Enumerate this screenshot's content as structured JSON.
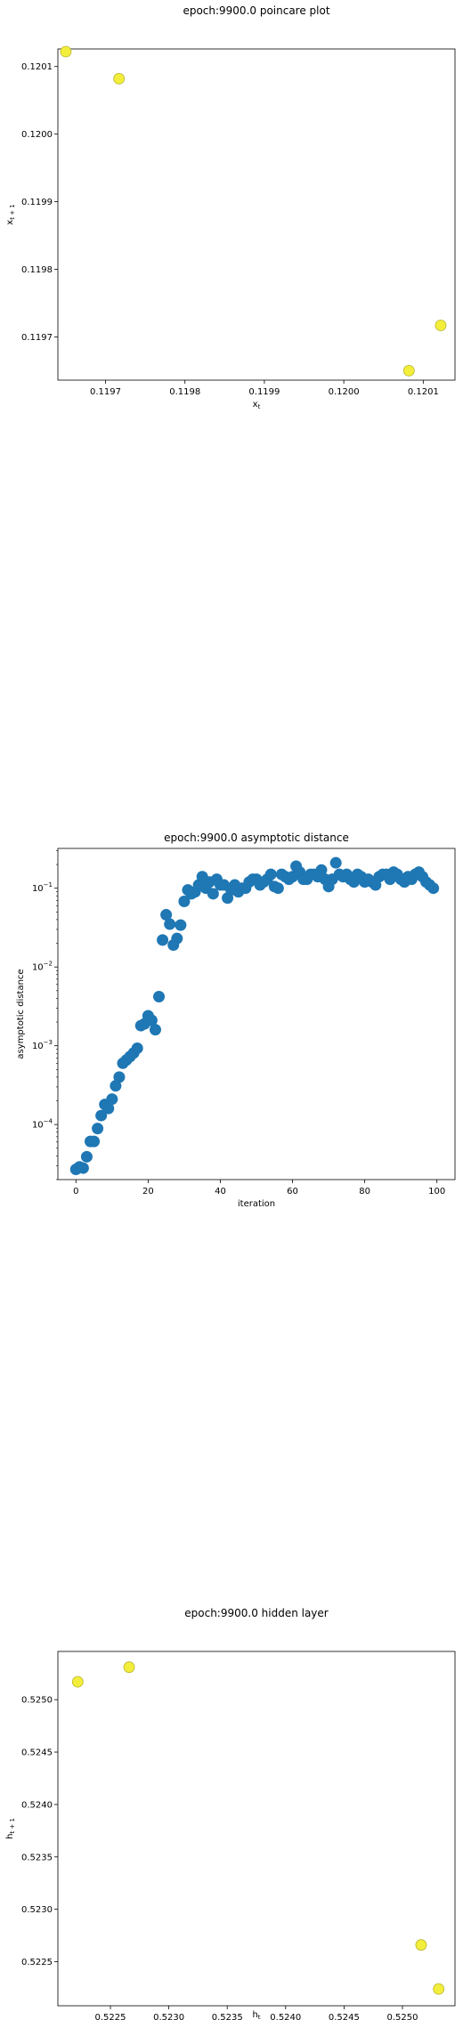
{
  "chart_data": [
    {
      "type": "scatter",
      "title": "epoch:9900.0 poincare plot",
      "xlabel": "x_t",
      "ylabel": "x_{t+1}",
      "xlim": [
        0.11964,
        0.12014
      ],
      "ylim": [
        0.119636,
        0.120126
      ],
      "xticks": [
        "0.1197",
        "0.1198",
        "0.1199",
        "0.1200",
        "0.1201"
      ],
      "yticks": [
        "0.1197",
        "0.1198",
        "0.1199",
        "0.1200",
        "0.1201"
      ],
      "xtick_values": [
        0.1197,
        0.1198,
        0.1199,
        0.12,
        0.1201
      ],
      "ytick_values": [
        0.1197,
        0.1198,
        0.1199,
        0.12,
        0.1201
      ],
      "color": "#f2ee3b",
      "edgecolor": "#b8b42c",
      "grid": false,
      "x": [
        0.11965,
        0.119717,
        0.120082,
        0.120122
      ],
      "y": [
        0.120122,
        0.120082,
        0.11965,
        0.119717
      ]
    },
    {
      "type": "scatter",
      "title": "epoch:9900.0 asymptotic distance",
      "xlabel": "iteration",
      "ylabel": "asymptotic distance",
      "yscale": "log",
      "xlim": [
        -5,
        105
      ],
      "ylim": [
        2e-05,
        0.32
      ],
      "xticks": [
        "0",
        "20",
        "40",
        "60",
        "80",
        "100"
      ],
      "xtick_values": [
        0,
        20,
        40,
        60,
        80,
        100
      ],
      "yticks": [
        "10^-4",
        "10^-3",
        "10^-2",
        "10^-1"
      ],
      "ytick_values": [
        0.0001,
        0.001,
        0.01,
        0.1
      ],
      "color": "#1f77b4",
      "grid": false,
      "x": [
        0,
        1,
        2,
        3,
        4,
        5,
        6,
        7,
        8,
        9,
        10,
        11,
        12,
        13,
        14,
        15,
        16,
        17,
        18,
        19,
        20,
        21,
        22,
        23,
        24,
        25,
        26,
        27,
        28,
        29,
        30,
        31,
        32,
        33,
        34,
        35,
        36,
        37,
        38,
        39,
        40,
        41,
        42,
        43,
        44,
        45,
        46,
        47,
        48,
        49,
        50,
        51,
        52,
        53,
        54,
        55,
        56,
        57,
        58,
        59,
        60,
        61,
        62,
        63,
        64,
        65,
        66,
        67,
        68,
        69,
        70,
        71,
        72,
        73,
        74,
        75,
        76,
        77,
        78,
        79,
        80,
        81,
        82,
        83,
        84,
        85,
        86,
        87,
        88,
        89,
        90,
        91,
        92,
        93,
        94,
        95,
        96,
        97,
        98,
        99
      ],
      "y": [
        2.7e-05,
        2.9e-05,
        2.8e-05,
        3.9e-05,
        6.1e-05,
        6.1e-05,
        8.9e-05,
        0.00013,
        0.00018,
        0.00016,
        0.00021,
        0.00031,
        0.0004,
        0.0006,
        0.00066,
        0.00073,
        0.00081,
        0.00093,
        0.0018,
        0.0019,
        0.0024,
        0.0021,
        0.0016,
        0.0042,
        0.022,
        0.046,
        0.035,
        0.019,
        0.023,
        0.034,
        0.068,
        0.095,
        0.085,
        0.09,
        0.11,
        0.14,
        0.1,
        0.12,
        0.085,
        0.13,
        0.11,
        0.11,
        0.075,
        0.095,
        0.11,
        0.09,
        0.1,
        0.1,
        0.12,
        0.13,
        0.13,
        0.11,
        0.12,
        0.13,
        0.15,
        0.105,
        0.1,
        0.15,
        0.14,
        0.13,
        0.14,
        0.19,
        0.16,
        0.13,
        0.13,
        0.15,
        0.15,
        0.14,
        0.17,
        0.13,
        0.105,
        0.13,
        0.21,
        0.15,
        0.14,
        0.15,
        0.13,
        0.12,
        0.15,
        0.14,
        0.12,
        0.13,
        0.12,
        0.11,
        0.14,
        0.15,
        0.15,
        0.13,
        0.16,
        0.15,
        0.13,
        0.12,
        0.14,
        0.13,
        0.15,
        0.16,
        0.14,
        0.12,
        0.11,
        0.1
      ]
    },
    {
      "type": "scatter",
      "title": "epoch:9900.0 hidden layer",
      "xlabel": "h_t",
      "ylabel": "h_{t+1}",
      "xlim": [
        0.52205,
        0.52545
      ],
      "ylim": [
        0.52208,
        0.52546
      ],
      "xticks": [
        "0.5225",
        "0.5230",
        "0.5235",
        "0.5240",
        "0.5245",
        "0.5250"
      ],
      "xtick_values": [
        0.5225,
        0.523,
        0.5235,
        0.524,
        0.5245,
        0.525
      ],
      "yticks": [
        "0.5225",
        "0.5230",
        "0.5235",
        "0.5240",
        "0.5245",
        "0.5250"
      ],
      "ytick_values": [
        0.5225,
        0.523,
        0.5235,
        0.524,
        0.5245,
        0.525
      ],
      "color": "#f2ee3b",
      "edgecolor": "#b8b42c",
      "grid": false,
      "x": [
        0.52222,
        0.52266,
        0.52516,
        0.52531
      ],
      "y": [
        0.52517,
        0.52531,
        0.52266,
        0.52224
      ]
    }
  ]
}
